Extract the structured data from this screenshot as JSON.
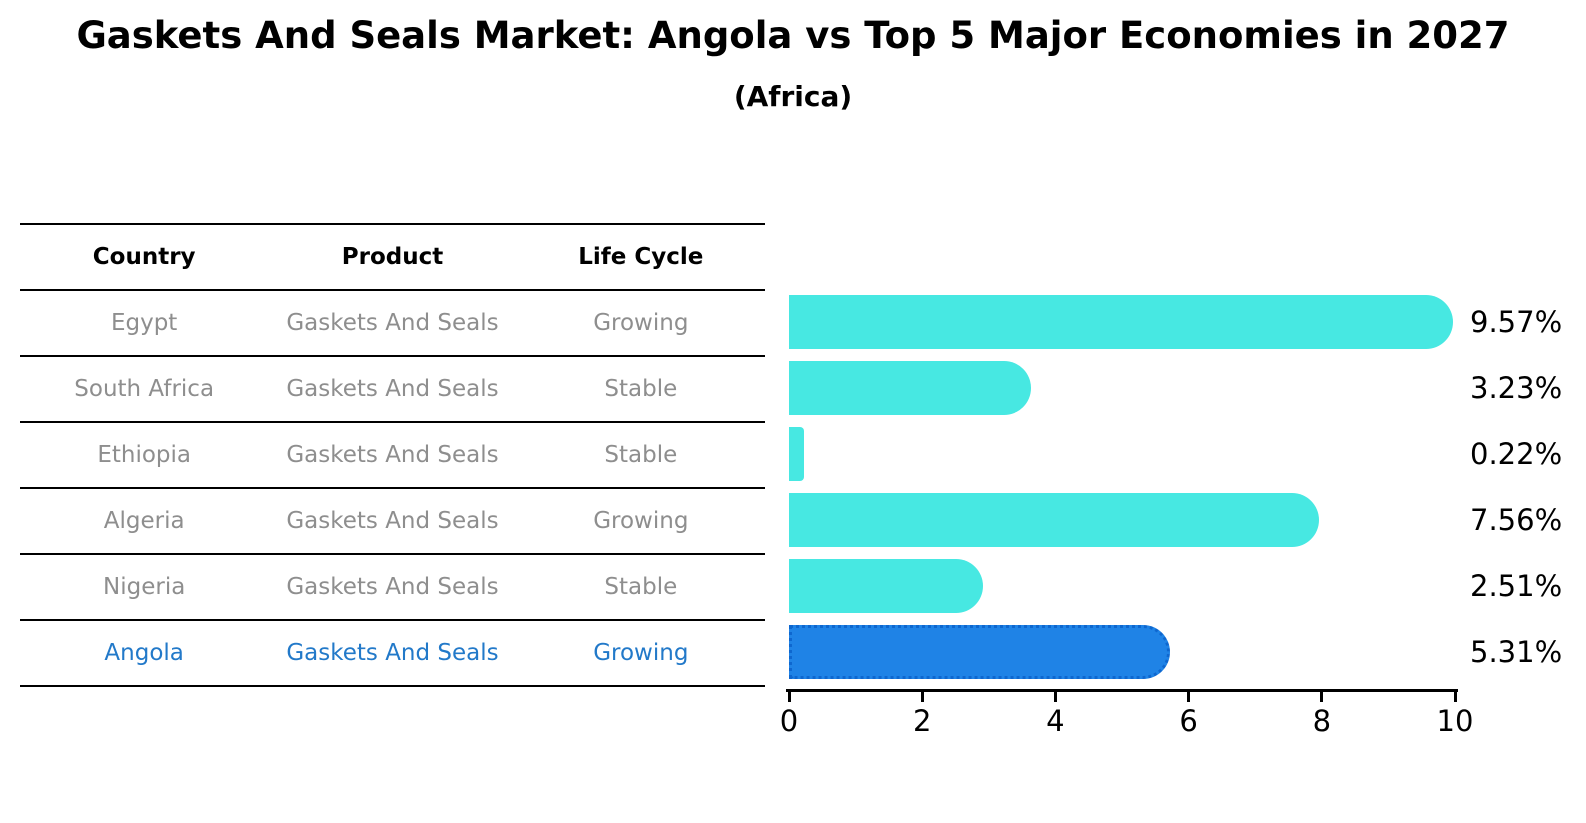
{
  "title": "Gaskets And Seals Market: Angola vs Top 5 Major Economies in 2027",
  "subtitle": "(Africa)",
  "table": {
    "headers": [
      "Country",
      "Product",
      "Life Cycle"
    ],
    "rows": [
      {
        "country": "Egypt",
        "product": "Gaskets And Seals",
        "life_cycle": "Growing",
        "highlighted": false
      },
      {
        "country": "South Africa",
        "product": "Gaskets And Seals",
        "life_cycle": "Stable",
        "highlighted": false
      },
      {
        "country": "Ethiopia",
        "product": "Gaskets And Seals",
        "life_cycle": "Stable",
        "highlighted": false
      },
      {
        "country": "Algeria",
        "product": "Gaskets And Seals",
        "life_cycle": "Growing",
        "highlighted": false
      },
      {
        "country": "Nigeria",
        "product": "Gaskets And Seals",
        "life_cycle": "Stable",
        "highlighted": false
      },
      {
        "country": "Angola",
        "product": "Gaskets And Seals",
        "life_cycle": "Growing",
        "highlighted": true
      }
    ]
  },
  "chart_data": {
    "type": "bar",
    "orientation": "horizontal",
    "categories": [
      "Egypt",
      "South Africa",
      "Ethiopia",
      "Algeria",
      "Nigeria",
      "Angola"
    ],
    "values": [
      9.57,
      3.23,
      0.22,
      7.56,
      2.51,
      5.31
    ],
    "value_labels": [
      "9.57%",
      "3.23%",
      "0.22%",
      "7.56%",
      "2.51%",
      "5.31%"
    ],
    "xlim": [
      0,
      10
    ],
    "xticks": [
      0,
      2,
      4,
      6,
      8,
      10
    ],
    "grid": false,
    "legend": "none",
    "highlight_index": 5,
    "highlight_border_style": "dotted"
  },
  "colors": {
    "default_bar": "#47e8e2",
    "highlight_bar": "#1f83e6",
    "highlight_border": "#0e67cf",
    "highlight_text": "#2279c9",
    "row_text": "#8e8e8e",
    "header_text": "#000000",
    "axis": "#000000"
  }
}
